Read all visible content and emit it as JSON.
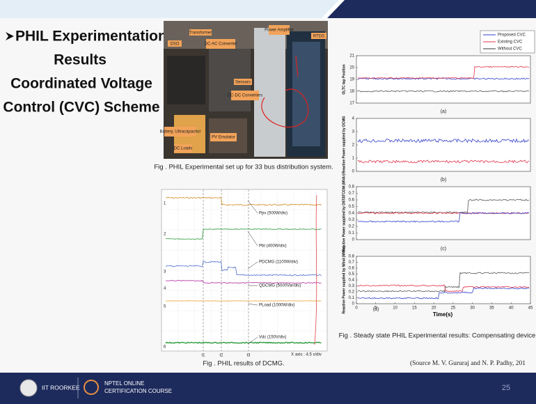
{
  "title": {
    "lines": [
      "PHIL Experimentation",
      "Results",
      "Coordinated Voltage",
      "Control (CVC) Scheme"
    ]
  },
  "photo": {
    "labels": [
      "Transformer",
      "Power Amplifier",
      "DSO",
      "DC-AC Converter",
      "RTDS",
      "Sensors",
      "DC-DC Converters",
      "Battery, Ultracapacitor",
      "PV Emulator",
      "DC Loads"
    ],
    "caption": "Fig . PHIL Experimental set up for 33 bus distribution system."
  },
  "dcmg": {
    "channels": [
      "1",
      "2",
      "3",
      "4",
      "5",
      "6"
    ],
    "traces": [
      "Ppv (500W/div)",
      "Pbt (400W/div)",
      "PDCMG (1100W/div)",
      "QDCMG (5000Var/div)",
      "PLoad (1000W/div)",
      "Vdc (150V/div)"
    ],
    "times": [
      "t1",
      "t2",
      "t3"
    ],
    "xaxis": "X axis : 4.5 s/div",
    "caption": "Fig . PHIL results of DCMG."
  },
  "steady": {
    "legend": [
      "Proposed CVC",
      "Existing CVC",
      "Without CVC"
    ],
    "panels": [
      {
        "label": "(a)",
        "ylabel": "OLTC tap Position",
        "yticks": [
          17,
          18,
          19,
          20,
          21
        ]
      },
      {
        "label": "(b)",
        "ylabel": "Reactive Power supplied by DCMG",
        "yticks": [
          0,
          1,
          2,
          3,
          4
        ]
      },
      {
        "label": "(c)",
        "ylabel": "Reactive Power supplied by DSTATCOM (MVAr)",
        "yticks": [
          0,
          0.1,
          0.2,
          0.3,
          0.4,
          0.5,
          0.6,
          0.7,
          0.8
        ]
      },
      {
        "label": "(d)",
        "ylabel": "Reactive Power supplied by Wind (MVAr)",
        "yticks": [
          0,
          0.1,
          0.2,
          0.3,
          0.4,
          0.5,
          0.6,
          0.7,
          0.8
        ]
      }
    ],
    "xticks": [
      0,
      5,
      10,
      15,
      20,
      25,
      30,
      35,
      40,
      45
    ],
    "xlabel": "Time(s)",
    "caption": "Fig . Steady state PHIL Experimental results: Compensating device",
    "source": "(Source M. V. Gururaj and N. P. Padhy, 201"
  },
  "footer": {
    "institute": "IIT ROORKEE",
    "course_line1": "NPTEL ONLINE",
    "course_line2": "CERTIFICATION COURSE",
    "page": "25"
  }
}
